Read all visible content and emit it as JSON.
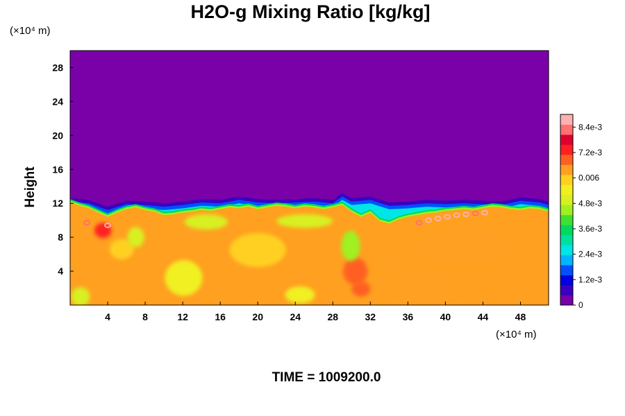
{
  "chart_data": {
    "type": "heatmap",
    "title": "H2O-g Mixing Ratio [kg/kg]",
    "ylabel": "Height",
    "xlabel": "",
    "x_unit_label": "(×10⁴ m)",
    "y_unit_label": "(×10⁴ m)",
    "xlim": [
      0,
      51
    ],
    "ylim": [
      0,
      30
    ],
    "x_ticks": [
      4,
      8,
      12,
      16,
      20,
      24,
      28,
      32,
      36,
      40,
      44,
      48
    ],
    "y_ticks": [
      4,
      8,
      12,
      16,
      20,
      24,
      28
    ],
    "colorbar": {
      "range": [
        0,
        0.009
      ],
      "tick_values": [
        0,
        0.0012,
        0.0024,
        0.0036,
        0.0048,
        0.006,
        0.0072,
        0.0084
      ],
      "tick_labels": [
        "0",
        "1.2e-3",
        "2.4e-3",
        "3.6e-3",
        "4.8e-3",
        "0.006",
        "7.2e-3",
        "8.4e-3"
      ],
      "colors": [
        "#7a00a8",
        "#3a00c0",
        "#0000e0",
        "#0050ff",
        "#00b4ff",
        "#00e6e6",
        "#00e0a0",
        "#00d860",
        "#40e030",
        "#a0f020",
        "#d8f020",
        "#f0f020",
        "#ffd020",
        "#ffa020",
        "#ff6020",
        "#ff2020",
        "#e00030",
        "#ff7070",
        "#ffb0b0"
      ]
    },
    "field": {
      "background_value": 3e-05,
      "moist_layer_value": 0.0062,
      "moist_layer_top": [
        [
          0,
          12.1
        ],
        [
          1,
          11.7
        ],
        [
          2,
          11.4
        ],
        [
          3,
          10.9
        ],
        [
          4,
          10.4
        ],
        [
          5,
          10.9
        ],
        [
          6,
          11.3
        ],
        [
          7,
          11.5
        ],
        [
          8,
          11.2
        ],
        [
          9,
          11.0
        ],
        [
          10,
          10.6
        ],
        [
          11,
          10.7
        ],
        [
          12,
          10.9
        ],
        [
          13,
          11.0
        ],
        [
          14,
          11.2
        ],
        [
          15,
          11.1
        ],
        [
          16,
          11.3
        ],
        [
          17,
          11.5
        ],
        [
          18,
          11.4
        ],
        [
          19,
          11.6
        ],
        [
          20,
          11.3
        ],
        [
          21,
          11.5
        ],
        [
          22,
          11.7
        ],
        [
          23,
          11.6
        ],
        [
          24,
          11.4
        ],
        [
          25,
          11.6
        ],
        [
          26,
          11.5
        ],
        [
          27,
          11.3
        ],
        [
          28,
          11.5
        ],
        [
          29,
          11.8
        ],
        [
          30,
          11.0
        ],
        [
          31,
          10.4
        ],
        [
          32,
          10.9
        ],
        [
          33,
          9.9
        ],
        [
          34,
          9.6
        ],
        [
          35,
          10.1
        ],
        [
          36,
          10.4
        ],
        [
          37,
          10.6
        ],
        [
          38,
          10.8
        ],
        [
          39,
          10.9
        ],
        [
          40,
          11.1
        ],
        [
          41,
          11.2
        ],
        [
          42,
          11.3
        ],
        [
          43,
          11.2
        ],
        [
          44,
          11.4
        ],
        [
          45,
          11.6
        ],
        [
          46,
          11.5
        ],
        [
          47,
          11.3
        ],
        [
          48,
          11.2
        ],
        [
          49,
          11.4
        ],
        [
          50,
          11.3
        ],
        [
          51,
          11.0
        ]
      ],
      "dry_layer_top": [
        [
          0,
          12.6
        ],
        [
          2,
          12.4
        ],
        [
          3,
          12.0
        ],
        [
          4,
          11.6
        ],
        [
          6,
          12.3
        ],
        [
          8,
          12.2
        ],
        [
          10,
          12.0
        ],
        [
          12,
          12.2
        ],
        [
          14,
          12.5
        ],
        [
          16,
          12.4
        ],
        [
          18,
          12.8
        ],
        [
          20,
          12.5
        ],
        [
          22,
          12.4
        ],
        [
          24,
          12.5
        ],
        [
          26,
          12.6
        ],
        [
          28,
          12.4
        ],
        [
          29,
          13.2
        ],
        [
          30,
          12.6
        ],
        [
          32,
          12.8
        ],
        [
          34,
          12.1
        ],
        [
          36,
          12.2
        ],
        [
          38,
          12.4
        ],
        [
          40,
          12.3
        ],
        [
          42,
          12.4
        ],
        [
          44,
          12.3
        ],
        [
          46,
          12.2
        ],
        [
          48,
          12.7
        ],
        [
          50,
          12.5
        ],
        [
          51,
          12.2
        ]
      ],
      "blobs": [
        {
          "x": 1.1,
          "y": 1.0,
          "rx": 1.0,
          "ry": 1.1,
          "value": 0.005
        },
        {
          "x": 12.1,
          "y": 3.2,
          "rx": 2.0,
          "ry": 2.1,
          "value": 0.0055
        },
        {
          "x": 24.5,
          "y": 1.2,
          "rx": 1.6,
          "ry": 1.0,
          "value": 0.0056
        },
        {
          "x": 5.5,
          "y": 6.6,
          "rx": 1.3,
          "ry": 1.2,
          "value": 0.0057
        },
        {
          "x": 20.0,
          "y": 6.5,
          "rx": 3.0,
          "ry": 2.0,
          "value": 0.0061
        },
        {
          "x": 30.4,
          "y": 4.0,
          "rx": 1.3,
          "ry": 1.6,
          "value": 0.0071
        },
        {
          "x": 31.0,
          "y": 1.9,
          "rx": 1.0,
          "ry": 0.9,
          "value": 0.0068
        },
        {
          "x": 29.9,
          "y": 7.0,
          "rx": 1.0,
          "ry": 1.8,
          "value": 0.0046
        },
        {
          "x": 33.8,
          "y": 5.0,
          "rx": 1.2,
          "ry": 1.3,
          "value": 0.0065
        },
        {
          "x": 42.0,
          "y": 7.0,
          "rx": 5.0,
          "ry": 2.5,
          "value": 0.0064
        },
        {
          "x": 38.0,
          "y": 2.2,
          "rx": 3.5,
          "ry": 1.8,
          "value": 0.0066
        },
        {
          "x": 14.5,
          "y": 9.8,
          "rx": 2.3,
          "ry": 0.9,
          "value": 0.005
        },
        {
          "x": 25.0,
          "y": 9.9,
          "rx": 3.0,
          "ry": 0.8,
          "value": 0.0052
        },
        {
          "x": 3.5,
          "y": 8.8,
          "rx": 0.9,
          "ry": 0.9,
          "value": 0.0074
        },
        {
          "x": 7.0,
          "y": 8.0,
          "rx": 0.9,
          "ry": 1.2,
          "value": 0.005
        }
      ],
      "high_cells": [
        {
          "x": 1.8,
          "y": 9.7,
          "value": 0.0084
        },
        {
          "x": 4.0,
          "y": 9.4,
          "value": 0.009
        },
        {
          "x": 37.2,
          "y": 9.7,
          "value": 0.0084
        },
        {
          "x": 38.2,
          "y": 10.0,
          "value": 0.009
        },
        {
          "x": 39.2,
          "y": 10.2,
          "value": 0.0087
        },
        {
          "x": 40.2,
          "y": 10.4,
          "value": 0.009
        },
        {
          "x": 41.2,
          "y": 10.6,
          "value": 0.0086
        },
        {
          "x": 42.2,
          "y": 10.7,
          "value": 0.009
        },
        {
          "x": 43.2,
          "y": 10.8,
          "value": 0.0085
        },
        {
          "x": 44.2,
          "y": 10.9,
          "value": 0.0087
        }
      ]
    }
  },
  "time_label": "TIME = 1009200.0"
}
